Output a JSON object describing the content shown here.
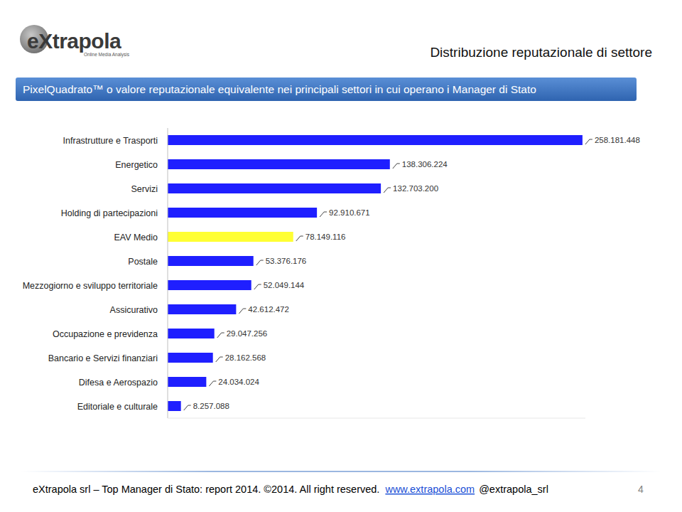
{
  "header": {
    "logo": "eXtrapola",
    "tagline": "Online Media Analysis"
  },
  "chart_data": {
    "type": "bar",
    "orientation": "horizontal",
    "title": "Distribuzione reputazionale di settore",
    "subtitle": "PixelQuadrato™ o valore reputazionale equivalente nei principali settori in cui operano i Manager di Stato",
    "categories": [
      "Infrastrutture e Trasporti",
      "Energetico",
      "Servizi",
      "Holding di partecipazioni",
      "EAV Medio",
      "Postale",
      "Mezzogiorno e sviluppo territoriale",
      "Assicurativo",
      "Occupazione e previdenza",
      "Bancario e Servizi finanziari",
      "Difesa e Aerospazio",
      "Editoriale e culturale"
    ],
    "values": [
      258181448,
      138306224,
      132703200,
      92910671,
      78149116,
      53376176,
      52049144,
      42612472,
      29047256,
      28162568,
      24034024,
      8257088
    ],
    "value_labels": [
      "258.181.448",
      "138.306.224",
      "132.703.200",
      "92.910.671",
      "78.149.116",
      "53.376.176",
      "52.049.144",
      "42.612.472",
      "29.047.256",
      "28.162.568",
      "24.034.024",
      "8.257.088"
    ],
    "colors": [
      "#1f1fff",
      "#1f1fff",
      "#1f1fff",
      "#1f1fff",
      "#ffff33",
      "#1f1fff",
      "#1f1fff",
      "#1f1fff",
      "#1f1fff",
      "#1f1fff",
      "#1f1fff",
      "#1f1fff"
    ],
    "xlim": [
      0,
      260000000
    ],
    "data_labels": true,
    "tick_labels": "y",
    "grid": false
  },
  "footer": {
    "text": "eXtrapola srl – Top Manager di Stato: report 2014. ©2014. All right reserved.",
    "link": "www.extrapola.com",
    "handle": "@extrapola_srl",
    "page": "4"
  }
}
